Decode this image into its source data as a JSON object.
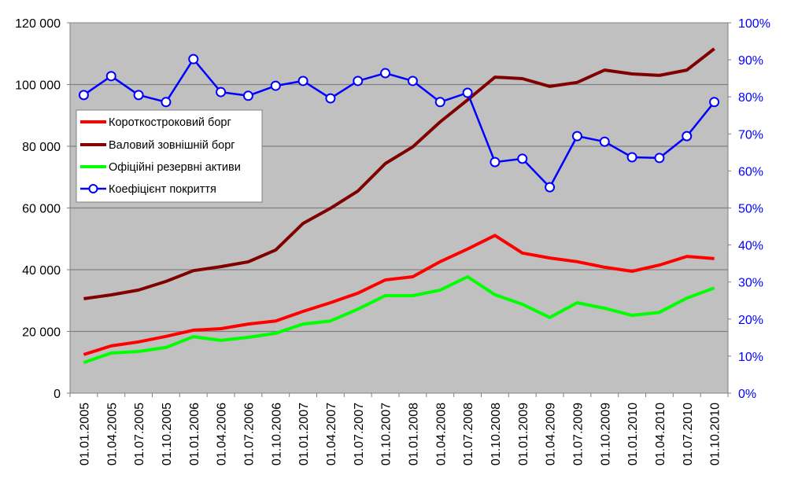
{
  "chart_data": {
    "type": "line",
    "title": "",
    "xlabel": "",
    "ylabel": "",
    "y2label": "",
    "grid": true,
    "legend_position": "upper-left inside plot",
    "ylim": [
      0,
      120000
    ],
    "y2lim": [
      0,
      1.0
    ],
    "y_ticks": [
      "0",
      "20 000",
      "40 000",
      "60 000",
      "80 000",
      "100 000",
      "120 000"
    ],
    "y2_ticks": [
      "0%",
      "10%",
      "20%",
      "30%",
      "40%",
      "50%",
      "60%",
      "70%",
      "80%",
      "90%",
      "100%"
    ],
    "categories": [
      "01.01.2005",
      "01.04.2005",
      "01.07.2005",
      "01.10.2005",
      "01.01.2006",
      "01.04.2006",
      "01.07.2006",
      "01.10.2006",
      "01.01.2007",
      "01.04.2007",
      "01.07.2007",
      "01.10.2007",
      "01.01.2008",
      "01.04.2008",
      "01.07.2008",
      "01.10.2008",
      "01.01.2009",
      "01.04.2009",
      "01.07.2009",
      "01.10.2009",
      "01.01.2010",
      "01.04.2010",
      "01.07.2010",
      "01.10.2010"
    ],
    "series": [
      {
        "name": "Короткостроковий борг",
        "axis": "left",
        "color": "#ff0000",
        "marker": false,
        "values": [
          12500,
          15300,
          16600,
          18400,
          20400,
          20900,
          22400,
          23400,
          26500,
          29300,
          32400,
          36700,
          37700,
          42600,
          46700,
          51100,
          45400,
          43800,
          42600,
          40800,
          39500,
          41500,
          44300,
          43600
        ]
      },
      {
        "name": "Валовий зовнішній борг",
        "axis": "left",
        "color": "#800000",
        "marker": false,
        "values": [
          30600,
          31850,
          33400,
          36200,
          39700,
          41000,
          42550,
          46400,
          55000,
          59900,
          65500,
          74400,
          79800,
          87900,
          95000,
          102400,
          101900,
          99400,
          100700,
          104700,
          103450,
          102950,
          104700,
          111600
        ]
      },
      {
        "name": "Офіційні резервні активи",
        "axis": "left",
        "color": "#00ff00",
        "marker": false,
        "values": [
          9900,
          13000,
          13500,
          14800,
          18300,
          17100,
          18100,
          19400,
          22400,
          23400,
          27200,
          31600,
          31600,
          33400,
          37700,
          31900,
          28800,
          24500,
          29300,
          27500,
          25200,
          26200,
          30800,
          34100
        ]
      },
      {
        "name": "Коефіцієнт покриття",
        "axis": "right",
        "color": "#0000ff",
        "marker": true,
        "values": [
          0.805,
          0.856,
          0.805,
          0.786,
          0.902,
          0.813,
          0.803,
          0.83,
          0.843,
          0.796,
          0.843,
          0.864,
          0.843,
          0.786,
          0.811,
          0.624,
          0.633,
          0.556,
          0.694,
          0.679,
          0.637,
          0.635,
          0.694,
          0.786
        ]
      }
    ]
  },
  "colors": {
    "plot_background": "#c0c0c0",
    "gridline": "#808080",
    "axis": "#808080",
    "right_axis_text": "#0000ff"
  }
}
